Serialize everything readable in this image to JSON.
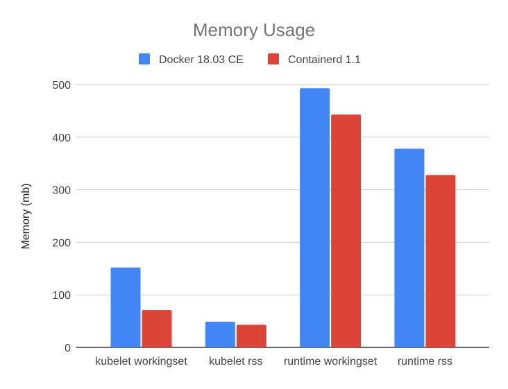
{
  "chart_data": {
    "type": "bar",
    "title": "Memory Usage",
    "xlabel": "",
    "ylabel": "Memory (mb)",
    "ylim": [
      0,
      500
    ],
    "yticks": [
      "0",
      "100",
      "200",
      "300",
      "400",
      "500"
    ],
    "grid": true,
    "legend_position": "top",
    "categories": [
      "kubelet workingset",
      "kubelet rss",
      "runtime workingset",
      "runtime rss"
    ],
    "series": [
      {
        "name": "Docker 18.03 CE",
        "color": "#4285f4",
        "values": [
          152,
          49,
          493,
          378
        ]
      },
      {
        "name": "Containerd 1.1",
        "color": "#db4437",
        "values": [
          71,
          43,
          443,
          328
        ]
      }
    ]
  }
}
